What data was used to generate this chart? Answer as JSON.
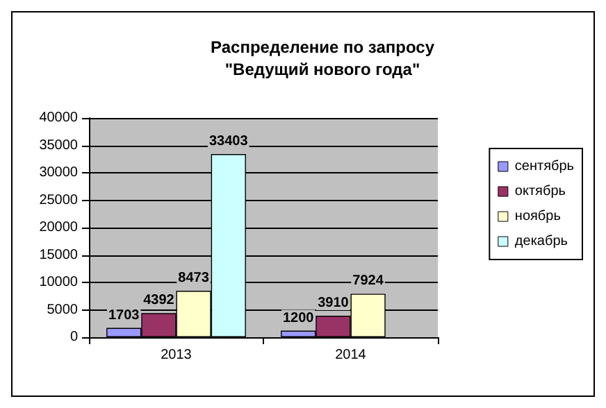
{
  "chart_data": {
    "type": "bar",
    "title": "Распределение по запросу\n\"Ведущий нового года\"",
    "categories": [
      "2013",
      "2014"
    ],
    "series": [
      {
        "name": "сентябрь",
        "color": "#9999ff",
        "values": [
          1703,
          1200
        ]
      },
      {
        "name": "октябрь",
        "color": "#993366",
        "values": [
          4392,
          3910
        ]
      },
      {
        "name": "ноябрь",
        "color": "#ffffcc",
        "values": [
          8473,
          7924
        ]
      },
      {
        "name": "декабрь",
        "color": "#ccffff",
        "values": [
          33403,
          null
        ]
      }
    ],
    "ylim": [
      0,
      40000
    ],
    "yticks": [
      0,
      5000,
      10000,
      15000,
      20000,
      25000,
      30000,
      35000,
      40000
    ],
    "grid": "y",
    "legend": "right",
    "data_labels": true
  }
}
